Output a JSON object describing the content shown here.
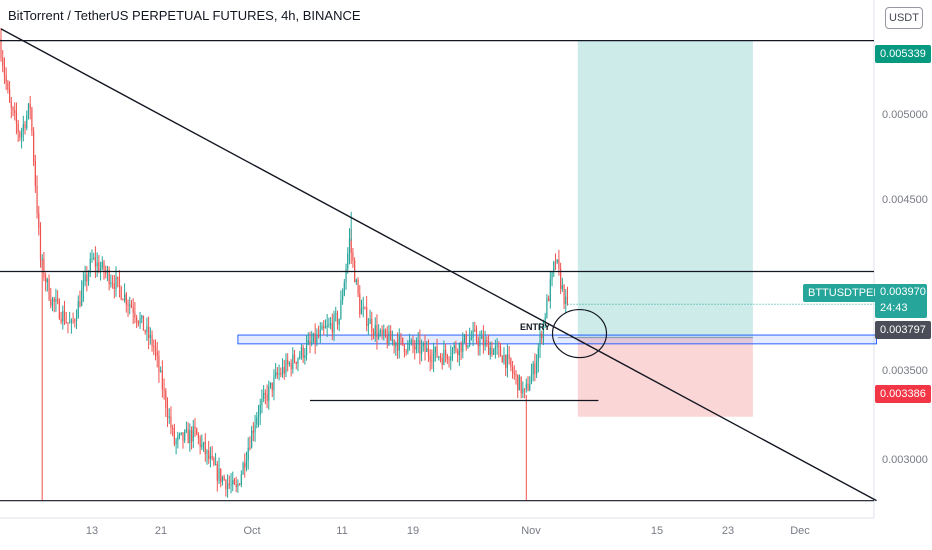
{
  "header": {
    "title": "BitTorrent / TetherUS PERPETUAL FUTURES, 4h, BINANCE",
    "currency_button": "USDT"
  },
  "price_badges": {
    "top_level": "0.005339",
    "symbol": "BTTUSDTPERP",
    "current": "0.003970",
    "countdown": "24:43",
    "entry_level": "0.003797",
    "stop_level": "0.003386"
  },
  "annotation": {
    "entry_label": "ENTRY"
  },
  "colors": {
    "up": "#26a69a",
    "down": "#ef5350",
    "target_zone": "#cdebe9",
    "stop_zone": "#fbd6d6",
    "entry_badge": "#4b4e58",
    "entry_band": "#2962ff"
  },
  "chart_data": {
    "type": "candlestick",
    "title": "BitTorrent / TetherUS PERPETUAL FUTURES, 4h, BINANCE",
    "y_axis": {
      "ticks": [
        "0.005000",
        "0.004500",
        "0.003500",
        "0.003000"
      ],
      "range": [
        0.00286,
        0.00555
      ]
    },
    "x_axis": {
      "ticks": [
        "13",
        "21",
        "Oct",
        "11",
        "19",
        "Nov",
        "15",
        "23",
        "Dec"
      ]
    },
    "price_path": [
      {
        "date": "2021-09-06",
        "price": 0.00535
      },
      {
        "date": "2021-09-07",
        "price": 0.005
      },
      {
        "date": "2021-09-08",
        "price": 0.00485
      },
      {
        "date": "2021-09-09",
        "price": 0.005
      },
      {
        "date": "2021-09-10",
        "price": 0.0042
      },
      {
        "date": "2021-09-11",
        "price": 0.004
      },
      {
        "date": "2021-09-13",
        "price": 0.00385
      },
      {
        "date": "2021-09-15",
        "price": 0.0042
      },
      {
        "date": "2021-09-17",
        "price": 0.0041
      },
      {
        "date": "2021-09-19",
        "price": 0.00395
      },
      {
        "date": "2021-09-21",
        "price": 0.00375
      },
      {
        "date": "2021-09-23",
        "price": 0.00325
      },
      {
        "date": "2021-09-25",
        "price": 0.0033
      },
      {
        "date": "2021-09-27",
        "price": 0.0031
      },
      {
        "date": "2021-09-29",
        "price": 0.003
      },
      {
        "date": "2021-10-01",
        "price": 0.0034
      },
      {
        "date": "2021-10-03",
        "price": 0.0036
      },
      {
        "date": "2021-10-06",
        "price": 0.00375
      },
      {
        "date": "2021-10-09",
        "price": 0.0039
      },
      {
        "date": "2021-10-10",
        "price": 0.0043
      },
      {
        "date": "2021-10-11",
        "price": 0.00395
      },
      {
        "date": "2021-10-13",
        "price": 0.0038
      },
      {
        "date": "2021-10-16",
        "price": 0.00375
      },
      {
        "date": "2021-10-19",
        "price": 0.0037
      },
      {
        "date": "2021-10-22",
        "price": 0.0038
      },
      {
        "date": "2021-10-25",
        "price": 0.0037
      },
      {
        "date": "2021-10-27",
        "price": 0.0035
      },
      {
        "date": "2021-10-28",
        "price": 0.00365
      },
      {
        "date": "2021-10-30",
        "price": 0.0042
      },
      {
        "date": "2021-10-31",
        "price": 0.00397
      }
    ],
    "wicks": [
      {
        "date": "2021-09-10",
        "low": 0.00295
      },
      {
        "date": "2021-10-27",
        "low": 0.00295
      },
      {
        "date": "2021-10-10",
        "high": 0.00445
      }
    ],
    "horizontal_lines": [
      {
        "price": 0.005339
      },
      {
        "price": 0.00414
      },
      {
        "price": 0.00347,
        "from": "2021-10-06",
        "to": "2021-11-03"
      },
      {
        "price": 0.00295
      }
    ],
    "trendline": {
      "start": {
        "date": "2021-09-06",
        "price": 0.0054
      },
      "end": {
        "date": "2021-11-30",
        "price": 0.00295
      }
    },
    "entry_zone": {
      "from": "2021-09-29",
      "to": "2021-11-30",
      "low": 0.00378,
      "high": 0.00381
    },
    "long_position": {
      "from": "2021-11-01",
      "to": "2021-11-18",
      "entry": 0.003797,
      "target": 0.005339,
      "stop": 0.003386
    },
    "last_price": 0.00397
  }
}
